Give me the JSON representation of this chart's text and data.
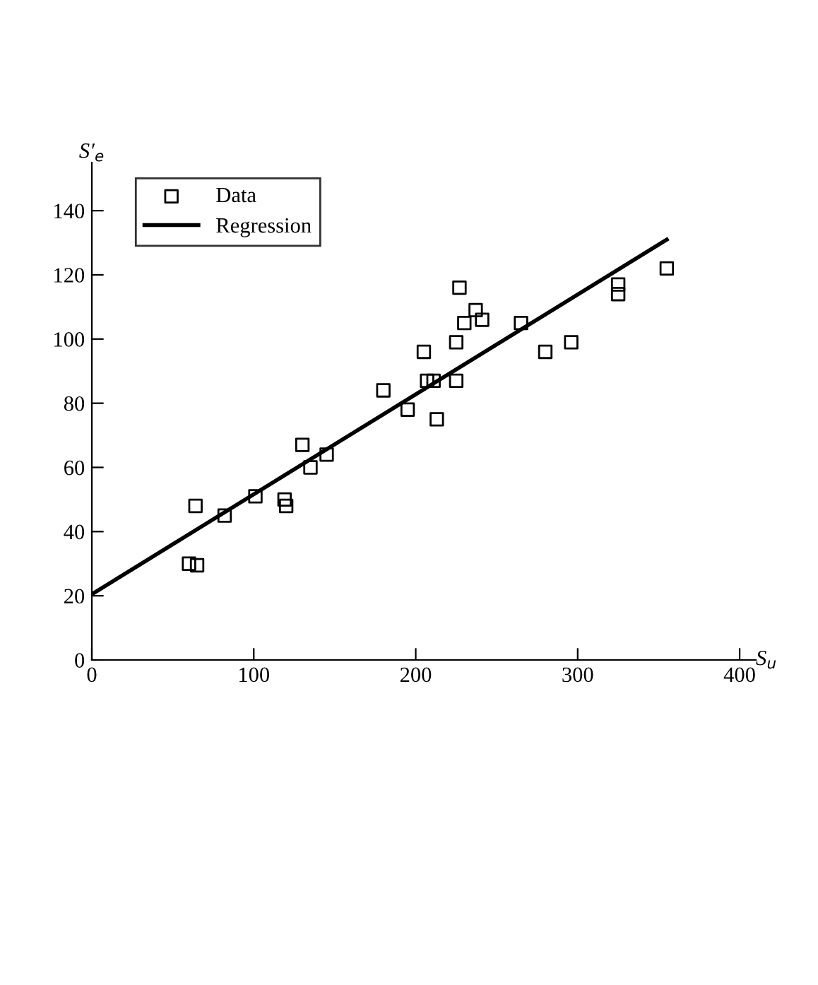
{
  "chart_data": {
    "type": "scatter",
    "xlabel": "S$_{u}$",
    "ylabel": "S′$_{e}$",
    "xlim": [
      0,
      410
    ],
    "ylim": [
      0,
      155
    ],
    "xticks": [
      0,
      100,
      200,
      300,
      400
    ],
    "yticks": [
      0,
      20,
      40,
      60,
      80,
      100,
      120,
      140
    ],
    "grid": false,
    "legend": "top left",
    "series": [
      {
        "name": "Data",
        "marker": "square",
        "color": "#000000",
        "x": [
          60,
          65,
          64,
          82,
          101,
          119,
          120,
          130,
          135,
          145,
          180,
          195,
          205,
          207,
          211,
          213,
          225,
          225,
          227,
          230,
          237,
          241,
          265,
          280,
          296,
          325,
          325,
          355
        ],
        "values": [
          30,
          29.5,
          48,
          45,
          51,
          50,
          48,
          67,
          60,
          64,
          84,
          78,
          96,
          87,
          87,
          75,
          99,
          87,
          116,
          105,
          109,
          106,
          105,
          96,
          99,
          117,
          114,
          122
        ]
      },
      {
        "name": "Regression",
        "type": "line",
        "marker": "none",
        "line_style": "solid",
        "color": "#000000",
        "x": [
          0,
          355
        ],
        "values": [
          20.5,
          131
        ]
      }
    ]
  }
}
